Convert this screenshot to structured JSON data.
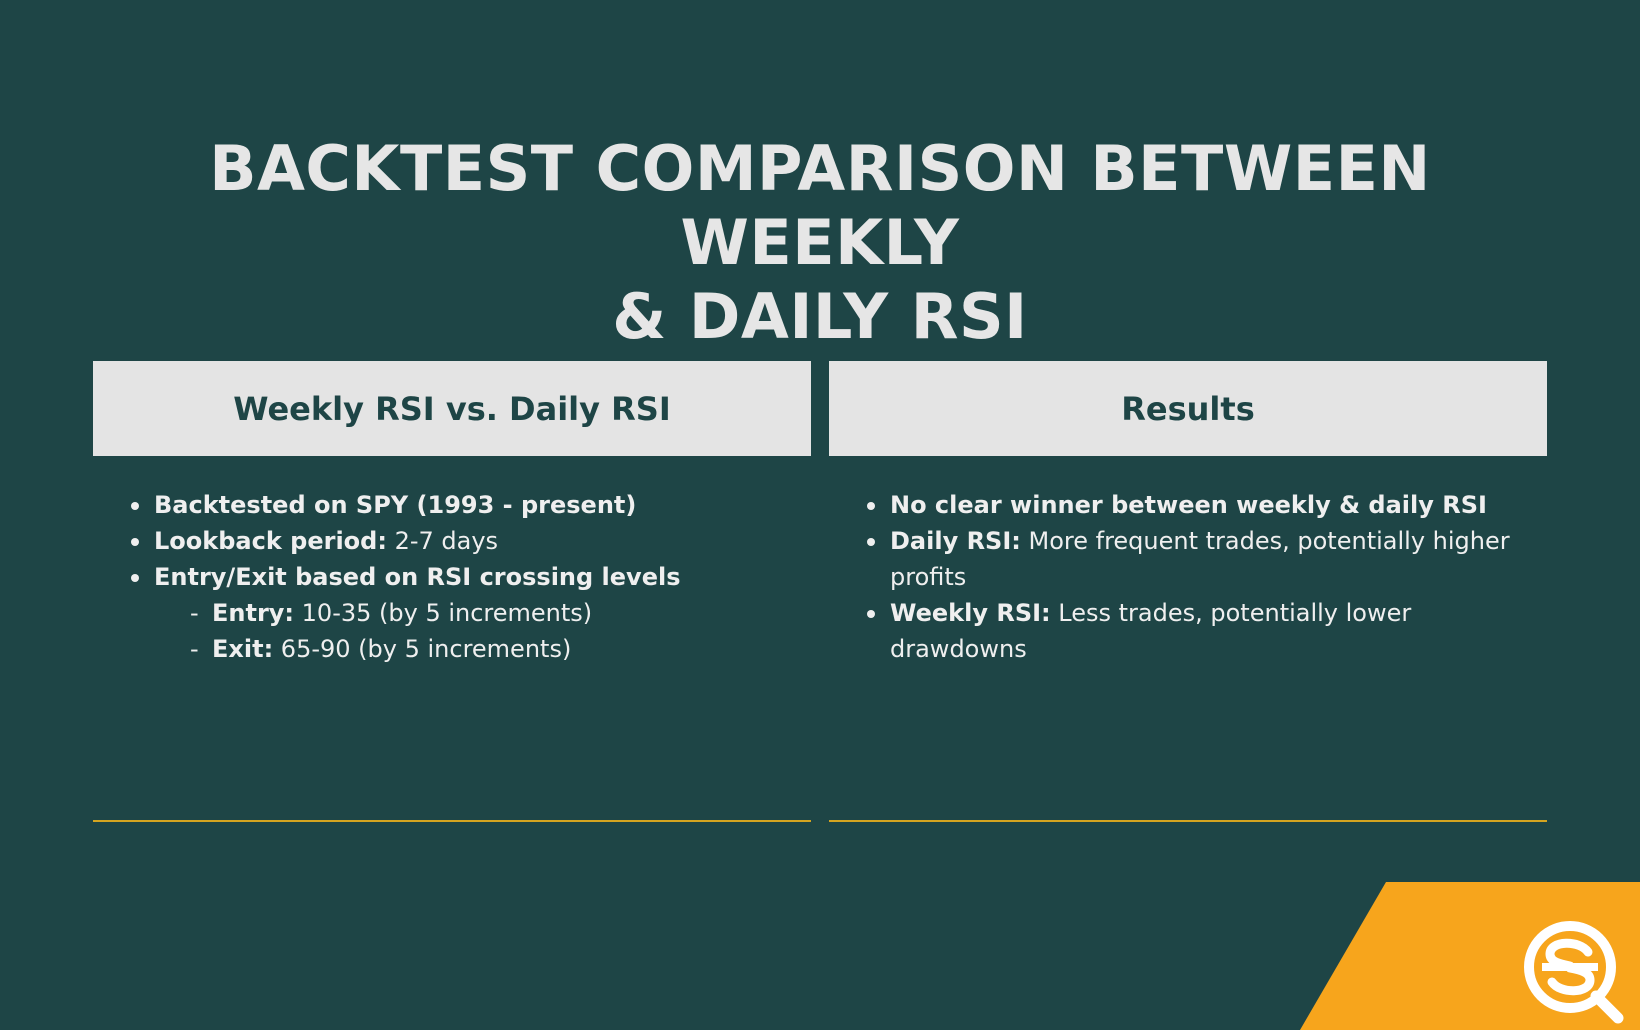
{
  "title": {
    "line1": "BACKTEST COMPARISON BETWEEN WEEKLY",
    "line2": "& DAILY RSI"
  },
  "left_panel": {
    "header": "Weekly RSI vs. Daily RSI",
    "bullets": [
      {
        "bold": "Backtested on SPY (1993 - present)",
        "text": ""
      },
      {
        "bold": "Lookback period:",
        "text": " 2-7 days"
      },
      {
        "bold": "Entry/Exit based on RSI crossing levels",
        "text": ""
      }
    ],
    "sub_items": [
      {
        "dash": "-",
        "bold": "Entry:",
        "text": " 10-35 (by 5 increments)"
      },
      {
        "dash": "-",
        "bold": "Exit:",
        "text": " 65-90 (by 5 increments)"
      }
    ]
  },
  "right_panel": {
    "header": "Results",
    "bullets": [
      {
        "bold": "No clear winner between weekly & daily RSI",
        "text": ""
      },
      {
        "bold": "Daily RSI:",
        "text": " More frequent trades, potentially higher profits"
      },
      {
        "bold": "Weekly RSI:",
        "text": " Less trades, potentially lower drawdowns"
      }
    ]
  },
  "colors": {
    "background": "#1e4546",
    "header_bg": "#e4e4e4",
    "accent": "#f7a51c",
    "divider": "#d4a420"
  },
  "logo": {
    "icon": "sq-logo-icon"
  }
}
